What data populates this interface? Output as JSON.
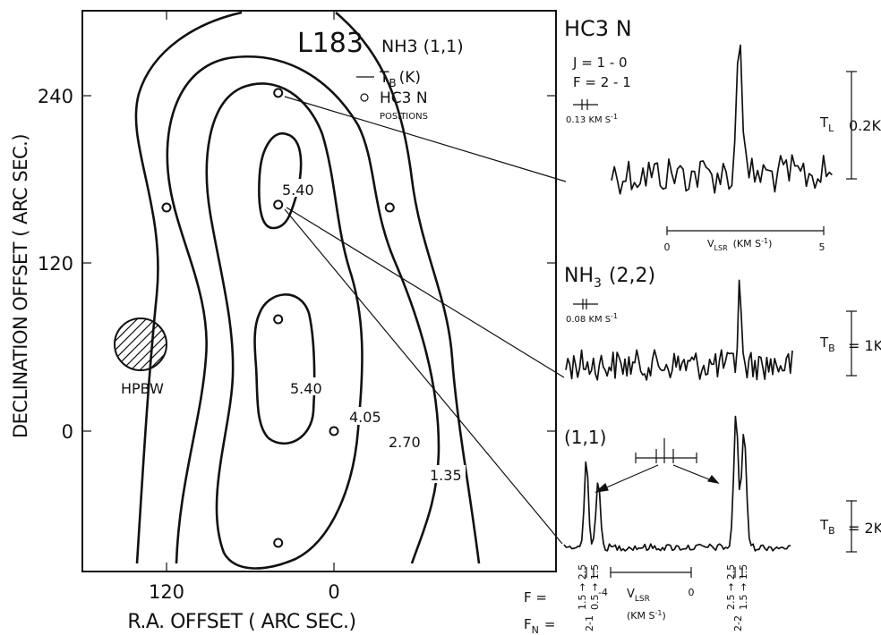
{
  "chart_data": [
    {
      "type": "contour",
      "title": "L183",
      "subtitle": "NH3 (1,1)",
      "xlabel": "R.A. OFFSET ( ARC SEC.)",
      "ylabel": "DECLINATION OFFSET ( ARC SEC.)",
      "xticks": [
        "120",
        "0"
      ],
      "yticks": [
        "240",
        "120",
        "0"
      ],
      "xlim": [
        185,
        -80
      ],
      "ylim": [
        -100,
        300
      ],
      "legend": {
        "line_label_main": "T",
        "line_label_sub": "B",
        "line_label_unit": "(K)",
        "marker_label": "HC3 N",
        "marker_sublabel": "POSITIONS"
      },
      "contour_levels": [
        "5.40",
        "5.40",
        "4.05",
        "2.70",
        "1.35"
      ],
      "beam_label": "HPBW",
      "positions": [
        {
          "x": 40,
          "y": 242
        },
        {
          "x": 40,
          "y": 162
        },
        {
          "x": 120,
          "y": 160
        },
        {
          "x": -40,
          "y": 160
        },
        {
          "x": 40,
          "y": 80
        },
        {
          "x": 0,
          "y": 0
        },
        {
          "x": 40,
          "y": -80
        }
      ]
    },
    {
      "type": "line",
      "title": "HC3 N",
      "transition_J": "J = 1 - 0",
      "transition_F": "F = 2 - 1",
      "resolution": "0.13 KM S",
      "resolution_exp": "-1",
      "scale_label": "T",
      "scale_sub": "L",
      "scale_value": "0.2K",
      "xaxis_label": "V",
      "xaxis_sub": "LSR",
      "xaxis_unit": "(KM S",
      "xaxis_unit_exp": "-1",
      "xaxis_close": ")",
      "xticks": [
        "0",
        "5"
      ]
    },
    {
      "type": "line",
      "title": "NH",
      "title_sub": "3",
      "title_rest": "(2,2)",
      "resolution": "0.08 KM S",
      "resolution_exp": "-1",
      "scale_label": "T",
      "scale_sub": "B",
      "scale_value": "= 1K"
    },
    {
      "type": "line",
      "title": "(1,1)",
      "scale_label": "T",
      "scale_sub": "B",
      "scale_value": "= 2K",
      "xaxis_label": "V",
      "xaxis_sub": "LSR",
      "xaxis_unit": "(KM S",
      "xaxis_unit_exp": "-1",
      "xaxis_close": ")",
      "xticks": [
        "-4",
        "0"
      ],
      "F_label": "F  =",
      "FN_label": "F",
      "FN_sub": "N",
      "FN_eq": "=",
      "F_transitions_left": [
        "1.5 → 2.5",
        "0.5 → 1.5"
      ],
      "F_transitions_right": [
        "2.5 → 2.5",
        "1.5 → 1.5"
      ],
      "FN_left": "2-1",
      "FN_right": "2-2"
    }
  ]
}
